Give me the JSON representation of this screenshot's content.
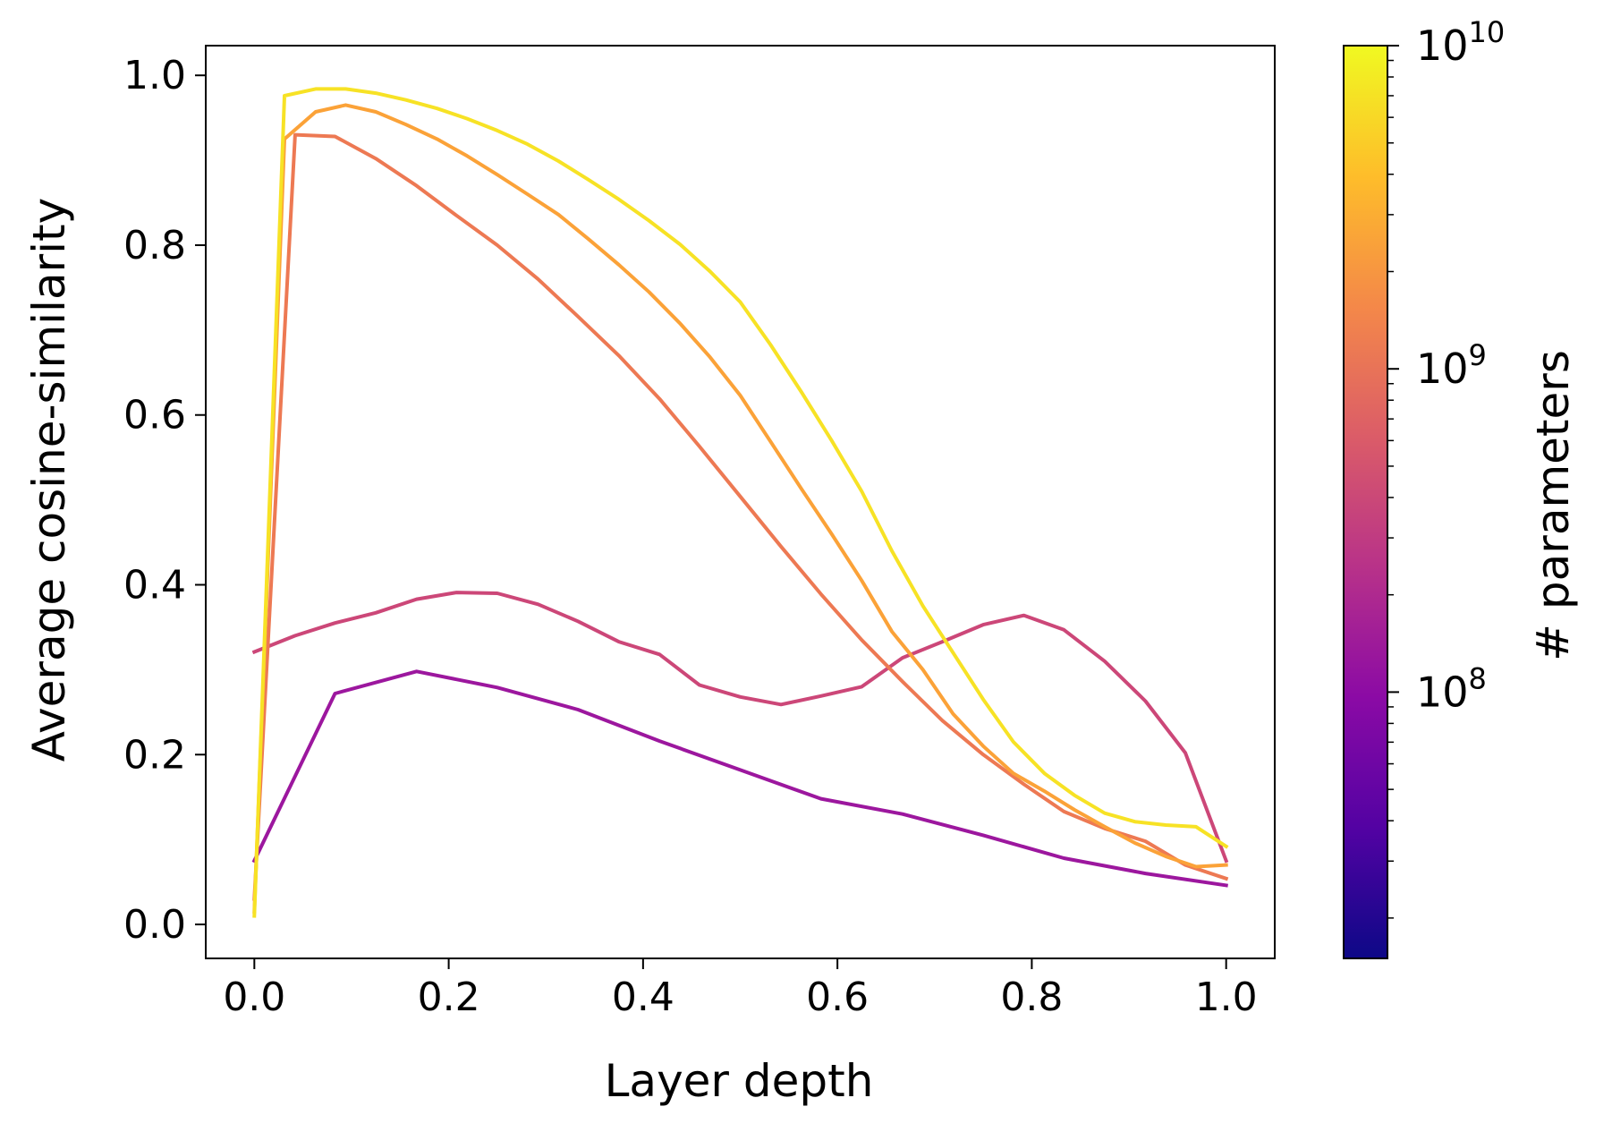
{
  "chart_data": {
    "type": "line",
    "title": "",
    "xlabel": "Layer depth",
    "ylabel": "Average cosine-similarity",
    "xlim": [
      -0.05,
      1.05
    ],
    "ylim": [
      -0.04,
      1.035
    ],
    "xticks": [
      0.0,
      0.2,
      0.4,
      0.6,
      0.8,
      1.0
    ],
    "xtick_labels": [
      "0.0",
      "0.2",
      "0.4",
      "0.6",
      "0.8",
      "1.0"
    ],
    "yticks": [
      0.0,
      0.2,
      0.4,
      0.6,
      0.8,
      1.0
    ],
    "ytick_labels": [
      "0.0",
      "0.2",
      "0.4",
      "0.6",
      "0.8",
      "1.0"
    ],
    "grid": false,
    "colorbar": {
      "label": "# parameters",
      "colormap": "plasma",
      "scale": "log",
      "range": [
        15000000,
        10000000000
      ],
      "major_ticks": [
        {
          "value": 100000000,
          "base": "10",
          "exponent": "8"
        },
        {
          "value": 1000000000,
          "base": "10",
          "exponent": "9"
        },
        {
          "value": 10000000000,
          "base": "10",
          "exponent": "10"
        }
      ],
      "gradient_stops": [
        "#0d0887",
        "#5302a3",
        "#8b0aa5",
        "#b83289",
        "#db5c68",
        "#f48849",
        "#febd2a",
        "#f0f921"
      ]
    },
    "series": [
      {
        "color": "#9c179e",
        "x": [
          0.0,
          0.083,
          0.167,
          0.25,
          0.333,
          0.417,
          0.5,
          0.583,
          0.667,
          0.75,
          0.833,
          0.917,
          1.0
        ],
        "y": [
          0.075,
          0.272,
          0.298,
          0.279,
          0.253,
          0.216,
          0.182,
          0.148,
          0.13,
          0.105,
          0.078,
          0.06,
          0.046
        ]
      },
      {
        "color": "#cc4778",
        "x": [
          0.0,
          0.042,
          0.083,
          0.125,
          0.167,
          0.208,
          0.25,
          0.292,
          0.333,
          0.375,
          0.417,
          0.458,
          0.5,
          0.542,
          0.583,
          0.625,
          0.667,
          0.708,
          0.75,
          0.792,
          0.833,
          0.875,
          0.917,
          0.958,
          1.0
        ],
        "y": [
          0.321,
          0.34,
          0.355,
          0.367,
          0.383,
          0.391,
          0.39,
          0.377,
          0.357,
          0.333,
          0.318,
          0.282,
          0.268,
          0.259,
          0.269,
          0.28,
          0.314,
          0.333,
          0.353,
          0.364,
          0.347,
          0.31,
          0.263,
          0.202,
          0.075
        ]
      },
      {
        "color": "#ed7953",
        "x": [
          0.0,
          0.042,
          0.083,
          0.125,
          0.167,
          0.208,
          0.25,
          0.292,
          0.333,
          0.375,
          0.417,
          0.458,
          0.5,
          0.542,
          0.583,
          0.625,
          0.667,
          0.708,
          0.75,
          0.792,
          0.833,
          0.875,
          0.917,
          0.958,
          1.0
        ],
        "y": [
          0.03,
          0.93,
          0.928,
          0.902,
          0.87,
          0.835,
          0.8,
          0.76,
          0.716,
          0.67,
          0.619,
          0.563,
          0.504,
          0.445,
          0.389,
          0.335,
          0.286,
          0.24,
          0.2,
          0.165,
          0.133,
          0.113,
          0.098,
          0.07,
          0.054
        ]
      },
      {
        "color": "#fba238",
        "x": [
          0.0,
          0.031,
          0.063,
          0.094,
          0.125,
          0.156,
          0.188,
          0.219,
          0.25,
          0.281,
          0.313,
          0.344,
          0.375,
          0.406,
          0.438,
          0.469,
          0.5,
          0.531,
          0.563,
          0.594,
          0.625,
          0.656,
          0.688,
          0.719,
          0.75,
          0.781,
          0.813,
          0.844,
          0.875,
          0.906,
          0.938,
          0.969,
          1.0
        ],
        "y": [
          0.015,
          0.925,
          0.957,
          0.965,
          0.957,
          0.942,
          0.925,
          0.905,
          0.883,
          0.86,
          0.836,
          0.807,
          0.777,
          0.745,
          0.708,
          0.668,
          0.623,
          0.569,
          0.513,
          0.46,
          0.405,
          0.345,
          0.3,
          0.248,
          0.21,
          0.178,
          0.157,
          0.135,
          0.115,
          0.096,
          0.08,
          0.068,
          0.07
        ]
      },
      {
        "color": "#f7e225",
        "x": [
          0.0,
          0.031,
          0.063,
          0.094,
          0.125,
          0.156,
          0.188,
          0.219,
          0.25,
          0.281,
          0.313,
          0.344,
          0.375,
          0.406,
          0.438,
          0.469,
          0.5,
          0.531,
          0.563,
          0.594,
          0.625,
          0.656,
          0.688,
          0.719,
          0.75,
          0.781,
          0.813,
          0.844,
          0.875,
          0.906,
          0.938,
          0.969,
          1.0
        ],
        "y": [
          0.01,
          0.976,
          0.984,
          0.984,
          0.979,
          0.971,
          0.961,
          0.949,
          0.935,
          0.919,
          0.899,
          0.877,
          0.854,
          0.829,
          0.801,
          0.769,
          0.733,
          0.683,
          0.627,
          0.57,
          0.51,
          0.44,
          0.375,
          0.32,
          0.265,
          0.215,
          0.178,
          0.152,
          0.131,
          0.121,
          0.117,
          0.115,
          0.092
        ]
      }
    ]
  }
}
